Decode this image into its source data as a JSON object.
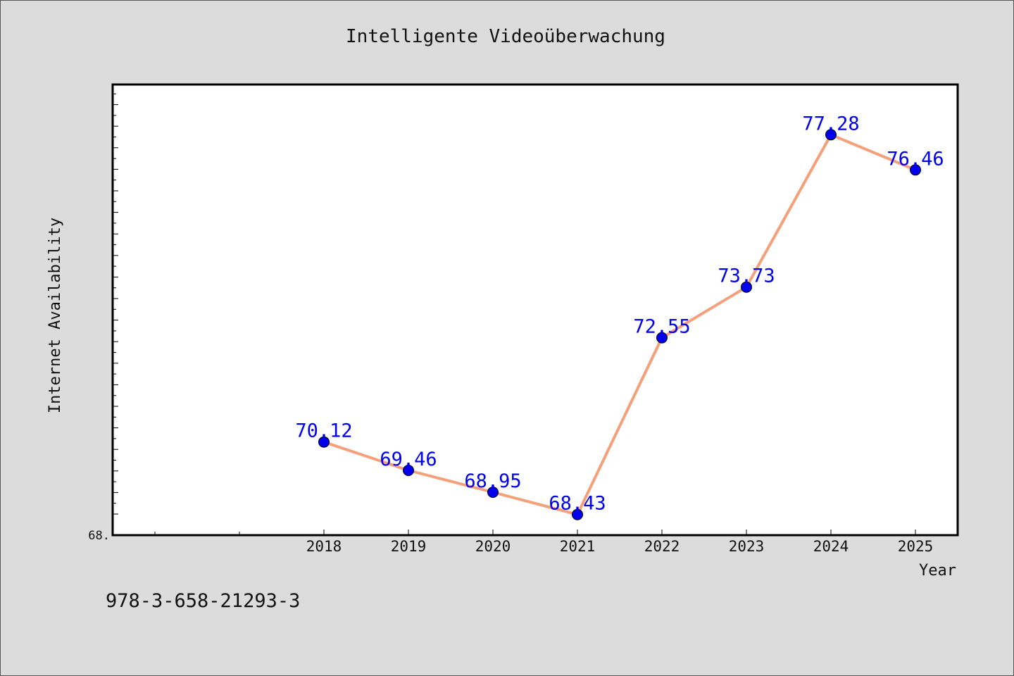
{
  "chart_data": {
    "type": "line",
    "title": "Intelligente Videoüberwachung",
    "xlabel": "Year",
    "ylabel": "Internet Availability",
    "x": [
      "2018",
      "2019",
      "2020",
      "2021",
      "2022",
      "2023",
      "2024",
      "2025"
    ],
    "series": [
      {
        "values": [
          70.12,
          69.46,
          68.95,
          68.43,
          72.55,
          73.73,
          77.28,
          76.46
        ],
        "labels": [
          "70.12",
          "69.46",
          "68.95",
          "68.43",
          "72.55",
          "73.73",
          "77.28",
          "76.46"
        ]
      }
    ],
    "y_tick_labels": [
      "68."
    ],
    "ylim": [
      67.95,
      78.45
    ],
    "grid": false,
    "line_color": "#f4a07a",
    "marker_color": "#0000ee",
    "label_color": "#0000ee"
  },
  "footer": {
    "isbn": "978-3-658-21293-3"
  }
}
